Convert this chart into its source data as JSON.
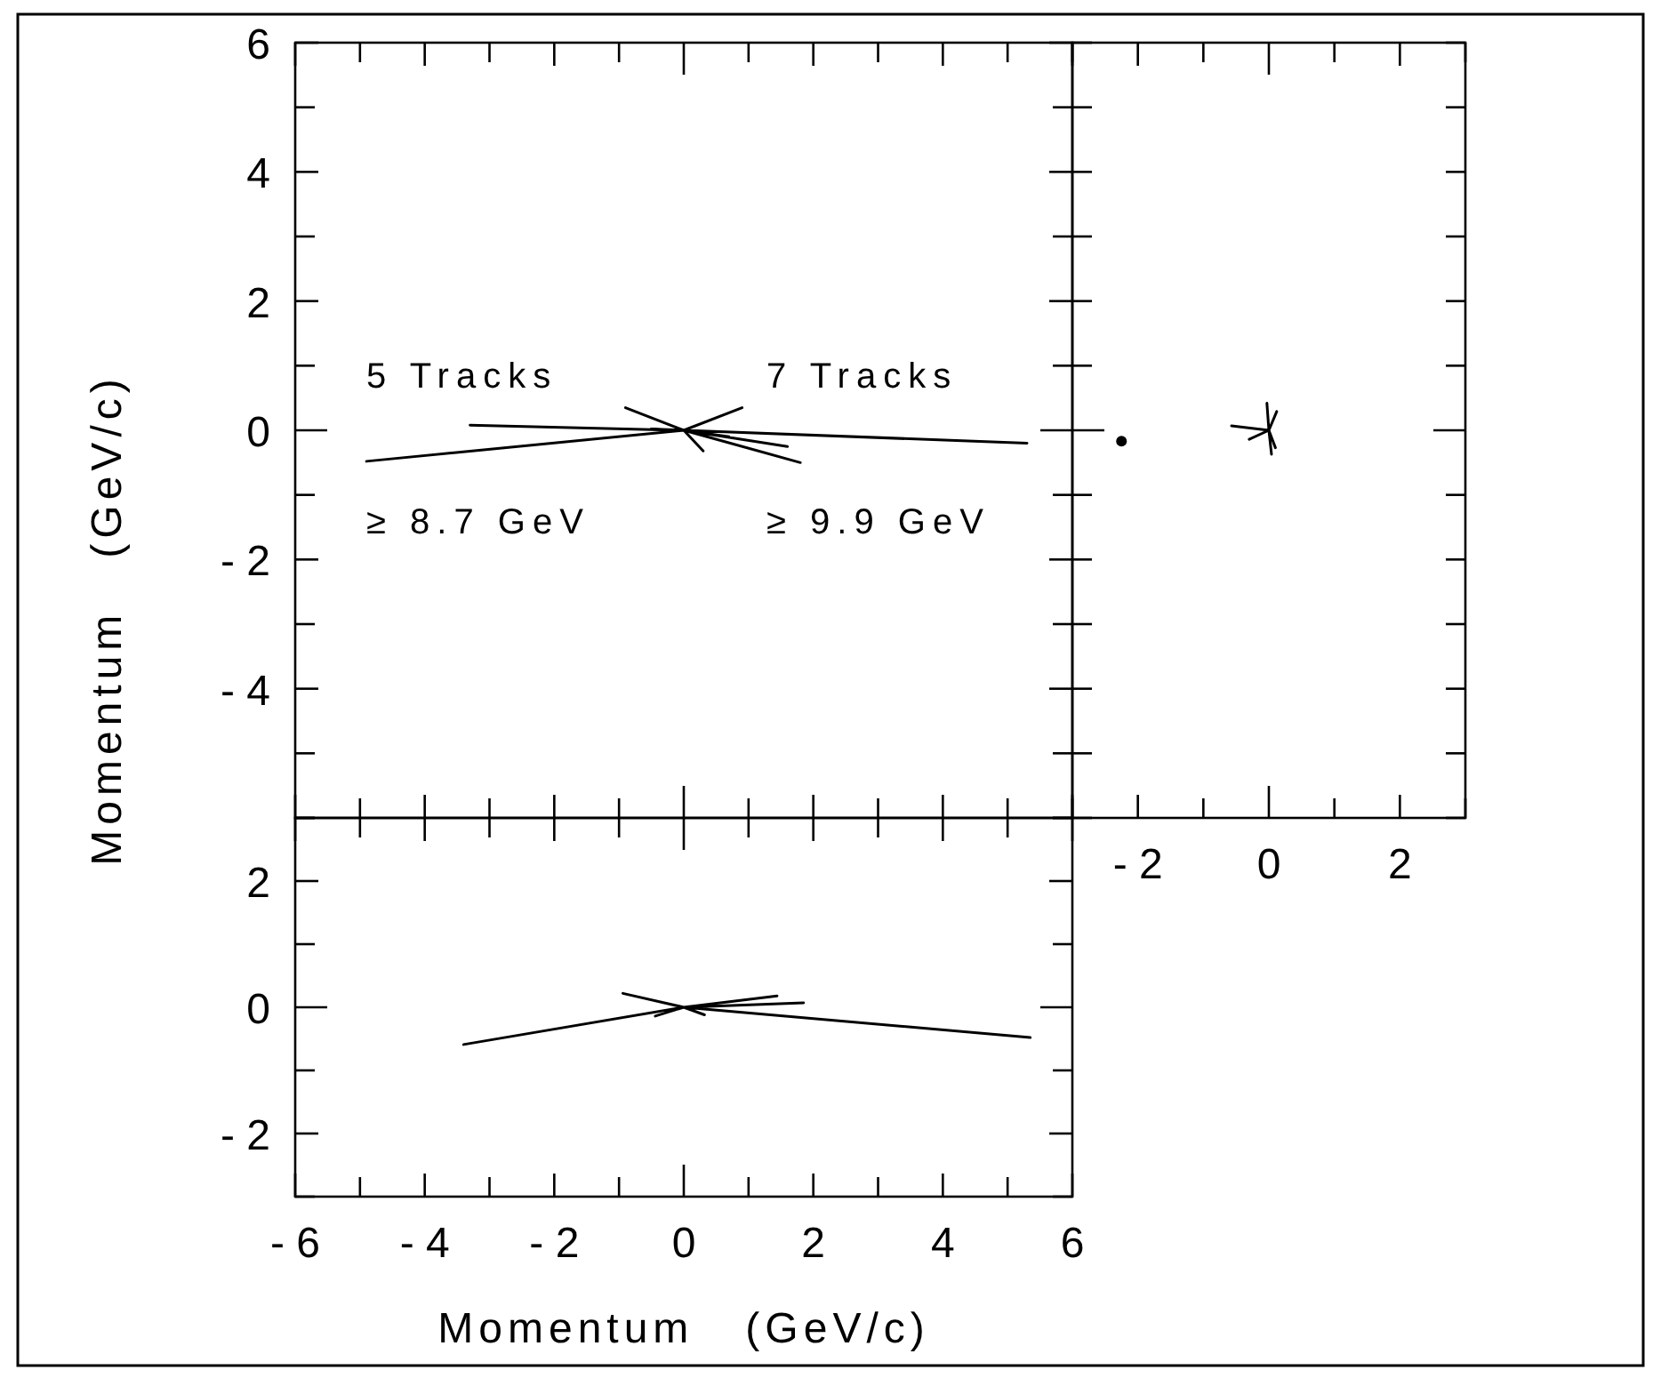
{
  "chart_data": [
    {
      "type": "line",
      "ylabel": "Momentum   (GeV/c)",
      "xlim": [
        -6,
        6
      ],
      "ylim": [
        -6,
        6
      ],
      "tick_labels": "y",
      "xticks": [
        -6,
        {
          "value": -5,
          "label": null
        },
        -4,
        {
          "value": -3,
          "label": null
        },
        -2,
        {
          "value": -1,
          "label": null
        },
        0,
        {
          "value": 1,
          "label": null
        },
        2,
        {
          "value": 3,
          "label": null
        },
        4,
        {
          "value": 5,
          "label": null
        },
        6
      ],
      "yticks": [
        {
          "value": -6,
          "label": null
        },
        {
          "value": -5,
          "label": null
        },
        -4,
        {
          "value": -3,
          "label": null
        },
        -2,
        {
          "value": -1,
          "label": null
        },
        0,
        {
          "value": 1,
          "label": null
        },
        2,
        {
          "value": 3,
          "label": null
        },
        4,
        {
          "value": 5,
          "label": null
        },
        6
      ],
      "annotations": [
        "5 Tracks",
        "≥ 8.7 GeV",
        "7 Tracks",
        "≥ 9.9 GeV"
      ],
      "series": [
        {
          "color": "#000000",
          "x": [
            0,
            -4.9,
            null,
            0,
            -3.3,
            null,
            0,
            -0.9,
            null,
            0,
            -0.5,
            null,
            0,
            0.9,
            null,
            0,
            5.3,
            null,
            0,
            1.8,
            null,
            0,
            1.6,
            null,
            0,
            0.3,
            null,
            0,
            0.7
          ],
          "values": [
            0,
            -0.48,
            null,
            0,
            0.08,
            null,
            0,
            0.35,
            null,
            0,
            0.02,
            null,
            0,
            0.35,
            null,
            0,
            -0.2,
            null,
            0,
            -0.5,
            null,
            0,
            -0.25,
            null,
            0,
            -0.32,
            null,
            0,
            -0.1
          ]
        }
      ]
    },
    {
      "type": "line",
      "xlim": [
        -3,
        3
      ],
      "ylim": [
        -6,
        6
      ],
      "tick_labels": "x",
      "xticks": [
        {
          "value": -3,
          "label": null
        },
        -2,
        {
          "value": -1,
          "label": null
        },
        0,
        {
          "value": 1,
          "label": null
        },
        2,
        {
          "value": 3,
          "label": null
        }
      ],
      "yticks": [
        {
          "value": -6,
          "label": null
        },
        {
          "value": -5,
          "label": null
        },
        {
          "value": -4,
          "label": null
        },
        {
          "value": -3,
          "label": null
        },
        {
          "value": -2,
          "label": null
        },
        {
          "value": -1,
          "label": null
        },
        {
          "value": 0,
          "label": null
        },
        {
          "value": 1,
          "label": null
        },
        {
          "value": 2,
          "label": null
        },
        {
          "value": 3,
          "label": null
        },
        {
          "value": 4,
          "label": null
        },
        {
          "value": 5,
          "label": null
        },
        {
          "value": 6,
          "label": null
        }
      ],
      "series": [
        {
          "color": "#000000",
          "x": [
            0,
            -0.57,
            null,
            0,
            0.12,
            null,
            0,
            -0.03,
            null,
            0,
            -0.3,
            null,
            0,
            0.04,
            null,
            0,
            0.1
          ],
          "values": [
            0,
            0.07,
            null,
            0,
            0.29,
            null,
            0,
            0.42,
            null,
            0,
            -0.14,
            null,
            0,
            -0.37,
            null,
            0,
            -0.27
          ]
        },
        {
          "type": "scatter",
          "color": "#000000",
          "marker": "circle",
          "x": [
            -2.25
          ],
          "values": [
            -0.17
          ]
        }
      ]
    },
    {
      "type": "line",
      "xlabel": "Momentum   (GeV/c)",
      "xlim": [
        -6,
        6
      ],
      "ylim": [
        -3,
        3
      ],
      "xticks": [
        -6,
        {
          "value": -5,
          "label": null
        },
        -4,
        {
          "value": -3,
          "label": null
        },
        -2,
        {
          "value": -1,
          "label": null
        },
        0,
        {
          "value": 1,
          "label": null
        },
        2,
        {
          "value": 3,
          "label": null
        },
        4,
        {
          "value": 5,
          "label": null
        },
        6
      ],
      "yticks": [
        {
          "value": -3,
          "label": null
        },
        -2,
        {
          "value": -1,
          "label": null
        },
        0,
        {
          "value": 1,
          "label": null
        },
        2,
        {
          "value": 3,
          "label": null
        }
      ],
      "series": [
        {
          "color": "#000000",
          "x": [
            0,
            -3.4,
            null,
            0,
            5.35,
            null,
            0,
            -0.94,
            null,
            0,
            1.44,
            null,
            0,
            1.85,
            null,
            0,
            0.32,
            null,
            0,
            -0.44
          ],
          "values": [
            0,
            -0.59,
            null,
            0,
            -0.48,
            null,
            0,
            0.22,
            null,
            0,
            0.18,
            null,
            0,
            0.07,
            null,
            0,
            -0.12,
            null,
            0,
            -0.14
          ]
        }
      ]
    }
  ]
}
